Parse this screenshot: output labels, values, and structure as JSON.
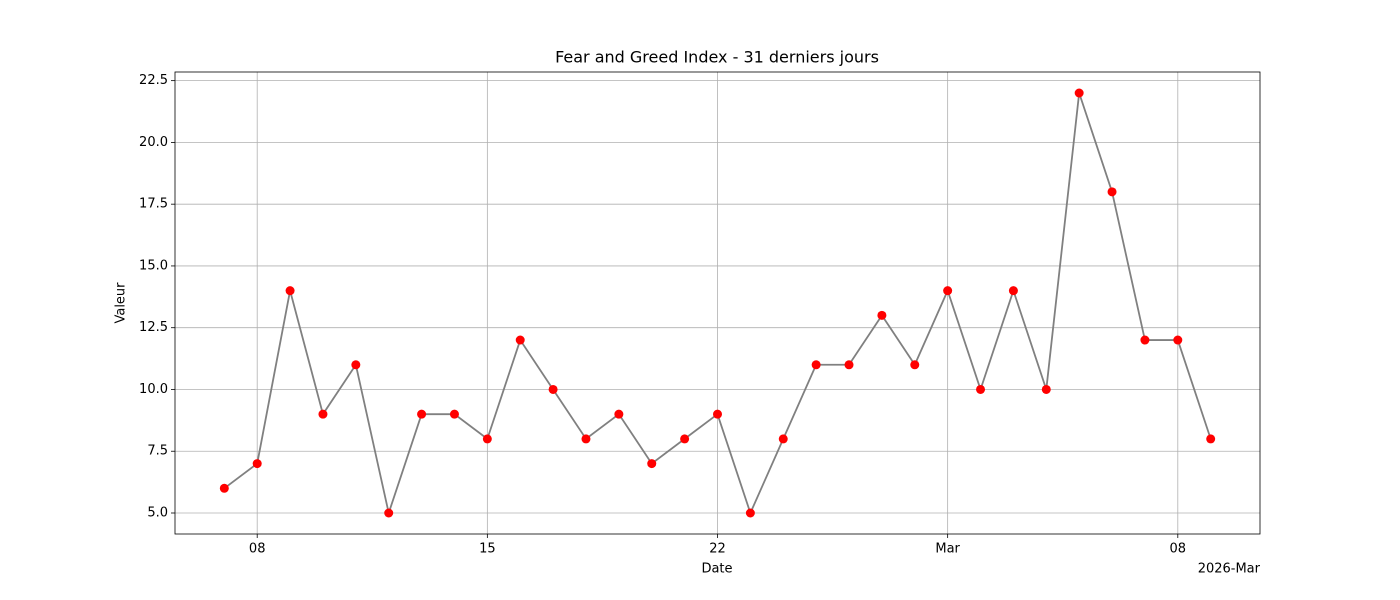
{
  "chart_data": {
    "type": "line",
    "title": "Fear and Greed Index - 31 derniers jours",
    "xlabel": "Date",
    "ylabel": "Valeur",
    "x_offset_label": "2026-Mar",
    "x": [
      "2026-02-07",
      "2026-02-08",
      "2026-02-09",
      "2026-02-10",
      "2026-02-11",
      "2026-02-12",
      "2026-02-13",
      "2026-02-14",
      "2026-02-15",
      "2026-02-16",
      "2026-02-17",
      "2026-02-18",
      "2026-02-19",
      "2026-02-20",
      "2026-02-21",
      "2026-02-22",
      "2026-02-23",
      "2026-02-24",
      "2026-02-25",
      "2026-02-26",
      "2026-02-27",
      "2026-02-28",
      "2026-03-01",
      "2026-03-02",
      "2026-03-03",
      "2026-03-04",
      "2026-03-05",
      "2026-03-06",
      "2026-03-07",
      "2026-03-08",
      "2026-03-09"
    ],
    "values": [
      6,
      7,
      14,
      9,
      11,
      5,
      9,
      9,
      8,
      12,
      10,
      8,
      9,
      7,
      8,
      9,
      5,
      8,
      11,
      11,
      13,
      11,
      14,
      10,
      14,
      10,
      22,
      18,
      12,
      12,
      8
    ],
    "color": "#808080",
    "marker_color": "#ff0000",
    "xlim": [
      "2026-02-05T12:00",
      "2026-03-10T12:00"
    ],
    "xticks": [
      {
        "value": "2026-02-08",
        "label": "08"
      },
      {
        "value": "2026-02-15",
        "label": "15"
      },
      {
        "value": "2026-02-22",
        "label": "22"
      },
      {
        "value": "2026-03-01",
        "label": "Mar"
      },
      {
        "value": "2026-03-08",
        "label": "08"
      }
    ],
    "ylim": [
      4.15,
      22.85
    ],
    "yticks": [
      {
        "value": 5,
        "label": "5.0"
      },
      {
        "value": 7.5,
        "label": "7.5"
      },
      {
        "value": 10,
        "label": "10.0"
      },
      {
        "value": 12.5,
        "label": "12.5"
      },
      {
        "value": 15,
        "label": "15.0"
      },
      {
        "value": 17.5,
        "label": "17.5"
      },
      {
        "value": 20,
        "label": "20.0"
      },
      {
        "value": 22.5,
        "label": "22.5"
      }
    ],
    "grid": true
  }
}
